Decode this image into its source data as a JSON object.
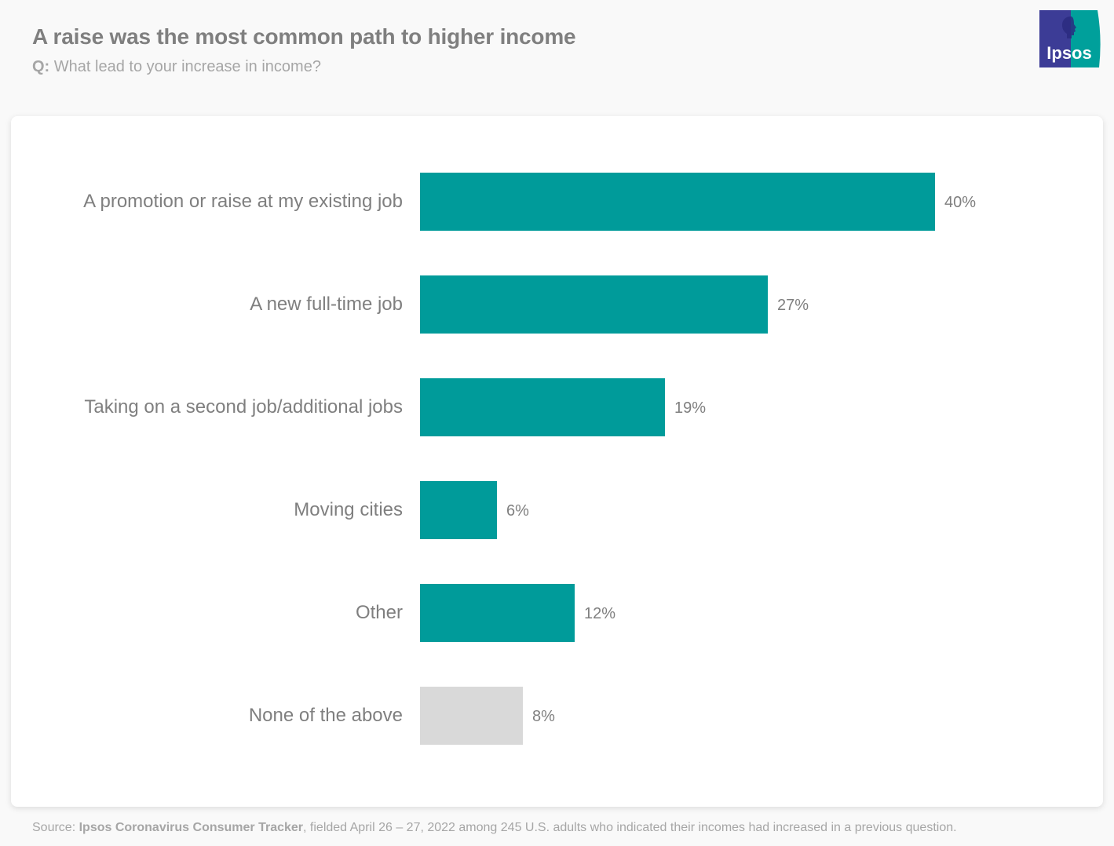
{
  "header": {
    "title": "A raise was the most common path to higher income",
    "question_prefix": "Q:",
    "question": "What lead to your increase in income?"
  },
  "logo": {
    "text": "Ipsos",
    "colors": {
      "left": "#3c3c96",
      "right": "#00a09b",
      "text": "#ffffff"
    }
  },
  "footer": {
    "source_prefix": "Source:",
    "source_name": "Ipsos Coronavirus Consumer Tracker",
    "source_detail": ", fielded April 26 – 27, 2022 among 245 U.S. adults who indicated their incomes had increased in a previous question."
  },
  "colors": {
    "primary_bar": "#009b9a",
    "neutral_bar": "#d9d9d9",
    "text": "#7f7f7f",
    "muted_text": "#a6a6a6"
  },
  "chart_data": {
    "type": "bar",
    "orientation": "horizontal",
    "title": "A raise was the most common path to higher income",
    "subtitle": "Q: What lead to your increase in income?",
    "xlabel": "",
    "ylabel": "",
    "categories": [
      "A promotion or raise at my existing job",
      "A new full-time job",
      "Taking on a second job/additional jobs",
      "Moving cities",
      "Other",
      "None of the above"
    ],
    "values": [
      40,
      27,
      19,
      6,
      12,
      8
    ],
    "value_labels": [
      "40%",
      "27%",
      "19%",
      "6%",
      "12%",
      "8%"
    ],
    "unit": "%",
    "bar_colors": [
      "#009b9a",
      "#009b9a",
      "#009b9a",
      "#009b9a",
      "#009b9a",
      "#d9d9d9"
    ],
    "xlim": [
      0,
      40
    ],
    "grid": false,
    "legend": null,
    "source": "Source: Ipsos Coronavirus Consumer Tracker, fielded April 26 – 27, 2022 among 245 U.S. adults who indicated their incomes had increased in a previous question."
  }
}
